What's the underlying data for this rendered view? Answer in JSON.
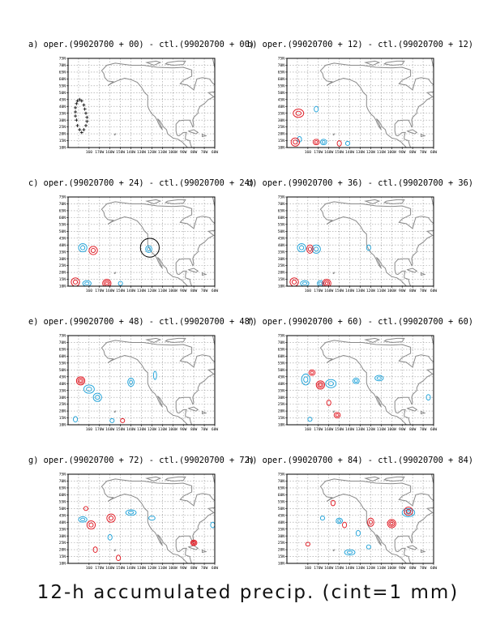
{
  "figure_caption": "12-h accumulated precip. (cint=1 mm)",
  "colors": {
    "land_outline": "#8a8a8a",
    "grid": "#9a9a9a",
    "positive_contour": "#e0101a",
    "negative_contour": "#1aa0d8",
    "track_marker": "#000000",
    "highlight_circle": "#000000"
  },
  "chart_data": [
    {
      "type": "contour",
      "panel": "a",
      "title": "a) oper.(99020700 + 00) - ctl.(99020700 + 00)",
      "lat_ticks": [
        "10N",
        "15N",
        "20N",
        "25N",
        "30N",
        "35N",
        "40N",
        "45N",
        "50N",
        "55N",
        "60N",
        "65N",
        "70N",
        "75N"
      ],
      "lon_ticks": [
        "160",
        "170W",
        "160W",
        "150W",
        "140W",
        "130W",
        "120W",
        "110W",
        "100W",
        "90W",
        "80W",
        "70W",
        "60W"
      ],
      "xlim": [
        -200,
        -60
      ],
      "ylim": [
        10,
        75
      ],
      "grid": true,
      "positive_contours": [],
      "negative_contours": [],
      "track_points": [
        [
          -192,
          42
        ],
        [
          -191,
          44
        ],
        [
          -189,
          45
        ],
        [
          -187,
          44
        ],
        [
          -185,
          41
        ],
        [
          -184,
          38
        ],
        [
          -183,
          35
        ],
        [
          -182,
          32
        ],
        [
          -182,
          29
        ],
        [
          -183,
          26
        ],
        [
          -185,
          23
        ],
        [
          -187,
          21
        ],
        [
          -189,
          23
        ],
        [
          -191,
          26
        ],
        [
          -192,
          30
        ],
        [
          -193,
          33
        ],
        [
          -193,
          36
        ],
        [
          -193,
          39
        ]
      ]
    },
    {
      "type": "contour",
      "panel": "b",
      "title": "b) oper.(99020700 + 12) - ctl.(99020700 + 12)",
      "lat_ticks": [
        "10N",
        "15N",
        "20N",
        "25N",
        "30N",
        "35N",
        "40N",
        "45N",
        "50N",
        "55N",
        "60N",
        "65N",
        "70N",
        "75N"
      ],
      "lon_ticks": [
        "160",
        "170W",
        "160W",
        "150W",
        "140W",
        "130W",
        "120W",
        "110W",
        "100W",
        "90W",
        "80W",
        "70W",
        "60W"
      ],
      "xlim": [
        -200,
        -60
      ],
      "ylim": [
        10,
        75
      ],
      "grid": true,
      "positive_contours": [
        {
          "lon": -189,
          "lat": 35,
          "rings": 2,
          "rx": 5,
          "ry": 3
        },
        {
          "lon": -192,
          "lat": 14,
          "rings": 2,
          "rx": 4,
          "ry": 3
        },
        {
          "lon": -172,
          "lat": 14,
          "rings": 2,
          "rx": 3,
          "ry": 2
        },
        {
          "lon": -150,
          "lat": 13,
          "rings": 1,
          "rx": 2,
          "ry": 2
        }
      ],
      "negative_contours": [
        {
          "lon": -172,
          "lat": 38,
          "rings": 1,
          "rx": 2,
          "ry": 2
        },
        {
          "lon": -188,
          "lat": 16,
          "rings": 1,
          "rx": 2,
          "ry": 2
        },
        {
          "lon": -165,
          "lat": 14,
          "rings": 2,
          "rx": 3,
          "ry": 2
        },
        {
          "lon": -142,
          "lat": 13,
          "rings": 1,
          "rx": 2,
          "ry": 1.5
        }
      ]
    },
    {
      "type": "contour",
      "panel": "c",
      "title": "c) oper.(99020700 + 24) - ctl.(99020700 + 24)",
      "lat_ticks": [
        "10N",
        "15N",
        "20N",
        "25N",
        "30N",
        "35N",
        "40N",
        "45N",
        "50N",
        "55N",
        "60N",
        "65N",
        "70N",
        "75N"
      ],
      "lon_ticks": [
        "160",
        "170W",
        "160W",
        "150W",
        "140W",
        "130W",
        "120W",
        "110W",
        "100W",
        "90W",
        "80W",
        "70W",
        "60W"
      ],
      "xlim": [
        -200,
        -60
      ],
      "ylim": [
        10,
        75
      ],
      "grid": true,
      "highlight": {
        "lon": -122,
        "lat": 38,
        "radius_deg": 9
      },
      "positive_contours": [
        {
          "lon": -176,
          "lat": 36,
          "rings": 2,
          "rx": 4,
          "ry": 3
        },
        {
          "lon": -193,
          "lat": 13,
          "rings": 2,
          "rx": 4,
          "ry": 3
        },
        {
          "lon": -163,
          "lat": 12,
          "rings": 3,
          "rx": 4,
          "ry": 3
        }
      ],
      "negative_contours": [
        {
          "lon": -186,
          "lat": 38,
          "rings": 2,
          "rx": 4,
          "ry": 3
        },
        {
          "lon": -123,
          "lat": 37,
          "rings": 2,
          "rx": 3,
          "ry": 2.5
        },
        {
          "lon": -182,
          "lat": 12,
          "rings": 2,
          "rx": 4,
          "ry": 2
        },
        {
          "lon": -150,
          "lat": 12,
          "rings": 1,
          "rx": 2,
          "ry": 1.5
        }
      ]
    },
    {
      "type": "contour",
      "panel": "d",
      "title": "d) oper.(99020700 + 36) - ctl.(99020700 + 36)",
      "lat_ticks": [
        "10N",
        "15N",
        "20N",
        "25N",
        "30N",
        "35N",
        "40N",
        "45N",
        "50N",
        "55N",
        "60N",
        "65N",
        "70N",
        "75N"
      ],
      "lon_ticks": [
        "160",
        "170W",
        "160W",
        "150W",
        "140W",
        "130W",
        "120W",
        "110W",
        "100W",
        "90W",
        "80W",
        "70W",
        "60W"
      ],
      "xlim": [
        -200,
        -60
      ],
      "ylim": [
        10,
        75
      ],
      "grid": true,
      "positive_contours": [
        {
          "lon": -178,
          "lat": 37,
          "rings": 2,
          "rx": 3,
          "ry": 3
        },
        {
          "lon": -193,
          "lat": 13,
          "rings": 2,
          "rx": 4,
          "ry": 3
        },
        {
          "lon": -162,
          "lat": 12,
          "rings": 3,
          "rx": 4,
          "ry": 3
        }
      ],
      "negative_contours": [
        {
          "lon": -186,
          "lat": 38,
          "rings": 2,
          "rx": 4,
          "ry": 3
        },
        {
          "lon": -172,
          "lat": 37,
          "rings": 2,
          "rx": 4,
          "ry": 3
        },
        {
          "lon": -122,
          "lat": 38,
          "rings": 1,
          "rx": 2,
          "ry": 2
        },
        {
          "lon": -183,
          "lat": 12,
          "rings": 2,
          "rx": 4,
          "ry": 2
        },
        {
          "lon": -168,
          "lat": 12,
          "rings": 2,
          "rx": 3,
          "ry": 2
        }
      ]
    },
    {
      "type": "contour",
      "panel": "e",
      "title": "e) oper.(99020700 + 48) - ctl.(99020700 + 48)",
      "lat_ticks": [
        "10N",
        "15N",
        "20N",
        "25N",
        "30N",
        "35N",
        "40N",
        "45N",
        "50N",
        "55N",
        "60N",
        "65N",
        "70N",
        "75N"
      ],
      "lon_ticks": [
        "160",
        "170W",
        "160W",
        "150W",
        "140W",
        "130W",
        "120W",
        "110W",
        "100W",
        "90W",
        "80W",
        "70W",
        "60W"
      ],
      "xlim": [
        -200,
        -60
      ],
      "ylim": [
        10,
        75
      ],
      "grid": true,
      "positive_contours": [
        {
          "lon": -188,
          "lat": 42,
          "rings": 3,
          "rx": 4,
          "ry": 3
        },
        {
          "lon": -148,
          "lat": 13,
          "rings": 1,
          "rx": 2,
          "ry": 1.5
        }
      ],
      "negative_contours": [
        {
          "lon": -180,
          "lat": 36,
          "rings": 2,
          "rx": 5,
          "ry": 3
        },
        {
          "lon": -172,
          "lat": 30,
          "rings": 2,
          "rx": 4,
          "ry": 3
        },
        {
          "lon": -140,
          "lat": 41,
          "rings": 2,
          "rx": 3,
          "ry": 3
        },
        {
          "lon": -117,
          "lat": 46,
          "rings": 1,
          "rx": 1.5,
          "ry": 3
        },
        {
          "lon": -193,
          "lat": 14,
          "rings": 1,
          "rx": 2,
          "ry": 2
        },
        {
          "lon": -158,
          "lat": 13,
          "rings": 1,
          "rx": 2,
          "ry": 1.5
        }
      ]
    },
    {
      "type": "contour",
      "panel": "f",
      "title": "f) oper.(99020700 + 60) - ctl.(99020700 + 60)",
      "lat_ticks": [
        "10N",
        "15N",
        "20N",
        "25N",
        "30N",
        "35N",
        "40N",
        "45N",
        "50N",
        "55N",
        "60N",
        "65N",
        "70N",
        "75N"
      ],
      "lon_ticks": [
        "160",
        "170W",
        "160W",
        "150W",
        "140W",
        "130W",
        "120W",
        "110W",
        "100W",
        "90W",
        "80W",
        "70W",
        "60W"
      ],
      "xlim": [
        -200,
        -60
      ],
      "ylim": [
        10,
        75
      ],
      "grid": true,
      "positive_contours": [
        {
          "lon": -168,
          "lat": 39,
          "rings": 3,
          "rx": 4,
          "ry": 3
        },
        {
          "lon": -176,
          "lat": 48,
          "rings": 2,
          "rx": 3,
          "ry": 2
        },
        {
          "lon": -152,
          "lat": 17,
          "rings": 2,
          "rx": 3,
          "ry": 2
        },
        {
          "lon": -160,
          "lat": 26,
          "rings": 1,
          "rx": 2,
          "ry": 2
        }
      ],
      "negative_contours": [
        {
          "lon": -182,
          "lat": 43,
          "rings": 2,
          "rx": 4,
          "ry": 4
        },
        {
          "lon": -158,
          "lat": 40,
          "rings": 2,
          "rx": 5,
          "ry": 3
        },
        {
          "lon": -134,
          "lat": 42,
          "rings": 2,
          "rx": 3,
          "ry": 2
        },
        {
          "lon": -112,
          "lat": 44,
          "rings": 2,
          "rx": 4,
          "ry": 2
        },
        {
          "lon": -65,
          "lat": 30,
          "rings": 1,
          "rx": 2,
          "ry": 2
        },
        {
          "lon": -178,
          "lat": 14,
          "rings": 1,
          "rx": 2,
          "ry": 1.5
        }
      ]
    },
    {
      "type": "contour",
      "panel": "g",
      "title": "g) oper.(99020700 + 72) - ctl.(99020700 + 72)",
      "lat_ticks": [
        "10N",
        "15N",
        "20N",
        "25N",
        "30N",
        "35N",
        "40N",
        "45N",
        "50N",
        "55N",
        "60N",
        "65N",
        "70N",
        "75N"
      ],
      "lon_ticks": [
        "160",
        "170W",
        "160W",
        "150W",
        "140W",
        "130W",
        "120W",
        "110W",
        "100W",
        "90W",
        "80W",
        "70W",
        "60W"
      ],
      "xlim": [
        -200,
        -60
      ],
      "ylim": [
        10,
        75
      ],
      "grid": true,
      "positive_contours": [
        {
          "lon": -178,
          "lat": 38,
          "rings": 2,
          "rx": 4,
          "ry": 3
        },
        {
          "lon": -159,
          "lat": 43,
          "rings": 2,
          "rx": 4,
          "ry": 3
        },
        {
          "lon": -80,
          "lat": 25,
          "rings": 3,
          "rx": 3,
          "ry": 2
        },
        {
          "lon": -183,
          "lat": 50,
          "rings": 1,
          "rx": 2,
          "ry": 1.5
        },
        {
          "lon": -174,
          "lat": 20,
          "rings": 1,
          "rx": 2,
          "ry": 2
        },
        {
          "lon": -152,
          "lat": 14,
          "rings": 1,
          "rx": 2,
          "ry": 2
        }
      ],
      "negative_contours": [
        {
          "lon": -186,
          "lat": 42,
          "rings": 2,
          "rx": 4,
          "ry": 2
        },
        {
          "lon": -140,
          "lat": 47,
          "rings": 2,
          "rx": 5,
          "ry": 2
        },
        {
          "lon": -120,
          "lat": 43,
          "rings": 1,
          "rx": 3,
          "ry": 1.5
        },
        {
          "lon": -62,
          "lat": 38,
          "rings": 1,
          "rx": 2,
          "ry": 2
        },
        {
          "lon": -160,
          "lat": 29,
          "rings": 1,
          "rx": 2,
          "ry": 2
        }
      ]
    },
    {
      "type": "contour",
      "panel": "h",
      "title": "h) oper.(99020700 + 84) - ctl.(99020700 + 84)",
      "lat_ticks": [
        "10N",
        "15N",
        "20N",
        "25N",
        "30N",
        "35N",
        "40N",
        "45N",
        "50N",
        "55N",
        "60N",
        "65N",
        "70N",
        "75N"
      ],
      "lon_ticks": [
        "160",
        "170W",
        "160W",
        "150W",
        "140W",
        "130W",
        "120W",
        "110W",
        "100W",
        "90W",
        "80W",
        "70W",
        "60W"
      ],
      "xlim": [
        -200,
        -60
      ],
      "ylim": [
        10,
        75
      ],
      "grid": true,
      "positive_contours": [
        {
          "lon": -156,
          "lat": 54,
          "rings": 1,
          "rx": 2,
          "ry": 2
        },
        {
          "lon": -120,
          "lat": 40,
          "rings": 2,
          "rx": 3,
          "ry": 3
        },
        {
          "lon": -100,
          "lat": 39,
          "rings": 3,
          "rx": 4,
          "ry": 3
        },
        {
          "lon": -145,
          "lat": 38,
          "rings": 1,
          "rx": 2,
          "ry": 2
        },
        {
          "lon": -180,
          "lat": 24,
          "rings": 1,
          "rx": 2,
          "ry": 1.5
        },
        {
          "lon": -84,
          "lat": 48,
          "rings": 2,
          "rx": 4,
          "ry": 3
        }
      ],
      "negative_contours": [
        {
          "lon": -84,
          "lat": 47,
          "rings": 3,
          "rx": 6,
          "ry": 3
        },
        {
          "lon": -150,
          "lat": 41,
          "rings": 2,
          "rx": 3,
          "ry": 2
        },
        {
          "lon": -132,
          "lat": 32,
          "rings": 1,
          "rx": 2,
          "ry": 2
        },
        {
          "lon": -140,
          "lat": 18,
          "rings": 2,
          "rx": 5,
          "ry": 2
        },
        {
          "lon": -122,
          "lat": 22,
          "rings": 1,
          "rx": 2,
          "ry": 1.5
        },
        {
          "lon": -166,
          "lat": 43,
          "rings": 1,
          "rx": 2,
          "ry": 1.5
        }
      ]
    }
  ]
}
